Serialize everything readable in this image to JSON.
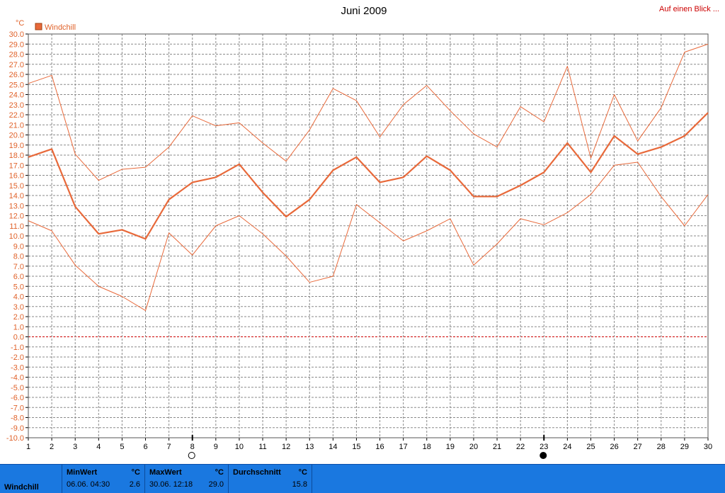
{
  "chart_data": {
    "type": "line",
    "title": "Juni 2009",
    "ylabel": "°C",
    "legend": "Windchill",
    "legend_position": "top-left",
    "ylim": [
      -10,
      30
    ],
    "grid": true,
    "x": [
      1,
      2,
      3,
      4,
      5,
      6,
      7,
      8,
      9,
      10,
      11,
      12,
      13,
      14,
      15,
      16,
      17,
      18,
      19,
      20,
      21,
      22,
      23,
      24,
      25,
      26,
      27,
      28,
      29,
      30
    ],
    "series": [
      {
        "name": "Windchill",
        "role": "avg",
        "values": [
          17.8,
          18.6,
          12.9,
          10.2,
          10.6,
          9.7,
          13.6,
          15.3,
          15.8,
          17.1,
          14.3,
          11.9,
          13.6,
          16.5,
          17.8,
          15.3,
          15.8,
          17.9,
          16.5,
          13.9,
          13.9,
          15.0,
          16.3,
          19.2,
          16.3,
          19.9,
          18.1,
          18.8,
          19.9,
          22.2
        ]
      },
      {
        "role": "max",
        "values": [
          25.1,
          25.9,
          18.1,
          15.5,
          16.6,
          16.8,
          18.8,
          21.9,
          20.9,
          21.2,
          19.2,
          17.4,
          20.5,
          24.6,
          23.4,
          19.8,
          23.0,
          24.9,
          22.4,
          20.1,
          18.8,
          22.8,
          21.3,
          26.8,
          17.7,
          24.0,
          19.4,
          22.7,
          28.2,
          29.0
        ]
      },
      {
        "role": "min",
        "values": [
          11.5,
          10.5,
          7.1,
          5.0,
          4.0,
          2.6,
          10.3,
          8.1,
          11.0,
          12.0,
          10.2,
          8.0,
          5.4,
          6.0,
          13.1,
          11.3,
          9.5,
          10.5,
          11.7,
          7.1,
          9.2,
          11.7,
          11.1,
          12.3,
          14.1,
          17.0,
          17.3,
          13.9,
          11.0,
          14.1
        ]
      }
    ],
    "colors": {
      "series": "#e8693a",
      "zero_line": "#cc0000",
      "grid": "#8a8a8a"
    },
    "moon_markers": [
      {
        "day": 8,
        "phase": "full-moon"
      },
      {
        "day": 23,
        "phase": "new-moon"
      }
    ]
  },
  "header": {
    "link_label": "Auf einen Blick ..."
  },
  "stats": {
    "parameter": "Windchill",
    "min": {
      "label": "MinWert",
      "unit": "°C",
      "date": "06.06.  04:30",
      "value": "2.6"
    },
    "max": {
      "label": "MaxWert",
      "unit": "°C",
      "date": "30.06.  12:18",
      "value": "29.0"
    },
    "avg": {
      "label": "Durchschnitt",
      "unit": "°C",
      "value": "15.8"
    }
  }
}
